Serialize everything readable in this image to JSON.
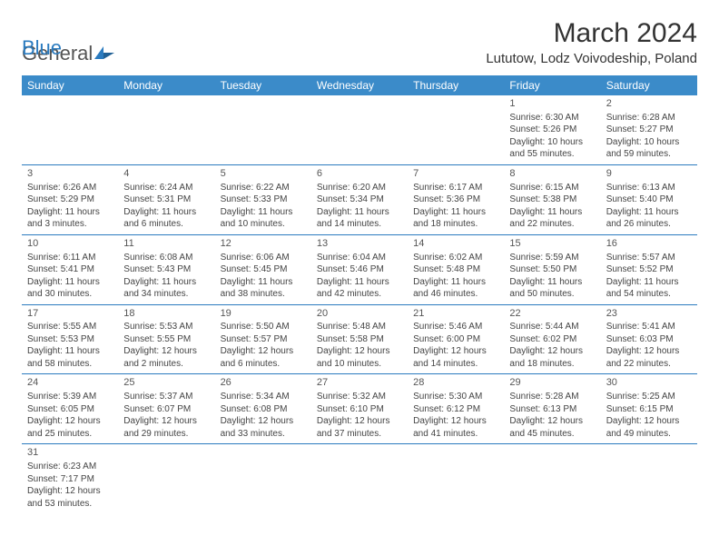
{
  "logo": {
    "text1": "General",
    "text2": "Blue"
  },
  "title": "March 2024",
  "location": "Lututow, Lodz Voivodeship, Poland",
  "colors": {
    "header_bg": "#3b8bc9",
    "header_text": "#ffffff",
    "border": "#2b7bbf",
    "body_text": "#444444",
    "title_text": "#333333"
  },
  "dayNames": [
    "Sunday",
    "Monday",
    "Tuesday",
    "Wednesday",
    "Thursday",
    "Friday",
    "Saturday"
  ],
  "leadingBlanks": 5,
  "days": [
    {
      "n": "1",
      "sr": "Sunrise: 6:30 AM",
      "ss": "Sunset: 5:26 PM",
      "d1": "Daylight: 10 hours",
      "d2": "and 55 minutes."
    },
    {
      "n": "2",
      "sr": "Sunrise: 6:28 AM",
      "ss": "Sunset: 5:27 PM",
      "d1": "Daylight: 10 hours",
      "d2": "and 59 minutes."
    },
    {
      "n": "3",
      "sr": "Sunrise: 6:26 AM",
      "ss": "Sunset: 5:29 PM",
      "d1": "Daylight: 11 hours",
      "d2": "and 3 minutes."
    },
    {
      "n": "4",
      "sr": "Sunrise: 6:24 AM",
      "ss": "Sunset: 5:31 PM",
      "d1": "Daylight: 11 hours",
      "d2": "and 6 minutes."
    },
    {
      "n": "5",
      "sr": "Sunrise: 6:22 AM",
      "ss": "Sunset: 5:33 PM",
      "d1": "Daylight: 11 hours",
      "d2": "and 10 minutes."
    },
    {
      "n": "6",
      "sr": "Sunrise: 6:20 AM",
      "ss": "Sunset: 5:34 PM",
      "d1": "Daylight: 11 hours",
      "d2": "and 14 minutes."
    },
    {
      "n": "7",
      "sr": "Sunrise: 6:17 AM",
      "ss": "Sunset: 5:36 PM",
      "d1": "Daylight: 11 hours",
      "d2": "and 18 minutes."
    },
    {
      "n": "8",
      "sr": "Sunrise: 6:15 AM",
      "ss": "Sunset: 5:38 PM",
      "d1": "Daylight: 11 hours",
      "d2": "and 22 minutes."
    },
    {
      "n": "9",
      "sr": "Sunrise: 6:13 AM",
      "ss": "Sunset: 5:40 PM",
      "d1": "Daylight: 11 hours",
      "d2": "and 26 minutes."
    },
    {
      "n": "10",
      "sr": "Sunrise: 6:11 AM",
      "ss": "Sunset: 5:41 PM",
      "d1": "Daylight: 11 hours",
      "d2": "and 30 minutes."
    },
    {
      "n": "11",
      "sr": "Sunrise: 6:08 AM",
      "ss": "Sunset: 5:43 PM",
      "d1": "Daylight: 11 hours",
      "d2": "and 34 minutes."
    },
    {
      "n": "12",
      "sr": "Sunrise: 6:06 AM",
      "ss": "Sunset: 5:45 PM",
      "d1": "Daylight: 11 hours",
      "d2": "and 38 minutes."
    },
    {
      "n": "13",
      "sr": "Sunrise: 6:04 AM",
      "ss": "Sunset: 5:46 PM",
      "d1": "Daylight: 11 hours",
      "d2": "and 42 minutes."
    },
    {
      "n": "14",
      "sr": "Sunrise: 6:02 AM",
      "ss": "Sunset: 5:48 PM",
      "d1": "Daylight: 11 hours",
      "d2": "and 46 minutes."
    },
    {
      "n": "15",
      "sr": "Sunrise: 5:59 AM",
      "ss": "Sunset: 5:50 PM",
      "d1": "Daylight: 11 hours",
      "d2": "and 50 minutes."
    },
    {
      "n": "16",
      "sr": "Sunrise: 5:57 AM",
      "ss": "Sunset: 5:52 PM",
      "d1": "Daylight: 11 hours",
      "d2": "and 54 minutes."
    },
    {
      "n": "17",
      "sr": "Sunrise: 5:55 AM",
      "ss": "Sunset: 5:53 PM",
      "d1": "Daylight: 11 hours",
      "d2": "and 58 minutes."
    },
    {
      "n": "18",
      "sr": "Sunrise: 5:53 AM",
      "ss": "Sunset: 5:55 PM",
      "d1": "Daylight: 12 hours",
      "d2": "and 2 minutes."
    },
    {
      "n": "19",
      "sr": "Sunrise: 5:50 AM",
      "ss": "Sunset: 5:57 PM",
      "d1": "Daylight: 12 hours",
      "d2": "and 6 minutes."
    },
    {
      "n": "20",
      "sr": "Sunrise: 5:48 AM",
      "ss": "Sunset: 5:58 PM",
      "d1": "Daylight: 12 hours",
      "d2": "and 10 minutes."
    },
    {
      "n": "21",
      "sr": "Sunrise: 5:46 AM",
      "ss": "Sunset: 6:00 PM",
      "d1": "Daylight: 12 hours",
      "d2": "and 14 minutes."
    },
    {
      "n": "22",
      "sr": "Sunrise: 5:44 AM",
      "ss": "Sunset: 6:02 PM",
      "d1": "Daylight: 12 hours",
      "d2": "and 18 minutes."
    },
    {
      "n": "23",
      "sr": "Sunrise: 5:41 AM",
      "ss": "Sunset: 6:03 PM",
      "d1": "Daylight: 12 hours",
      "d2": "and 22 minutes."
    },
    {
      "n": "24",
      "sr": "Sunrise: 5:39 AM",
      "ss": "Sunset: 6:05 PM",
      "d1": "Daylight: 12 hours",
      "d2": "and 25 minutes."
    },
    {
      "n": "25",
      "sr": "Sunrise: 5:37 AM",
      "ss": "Sunset: 6:07 PM",
      "d1": "Daylight: 12 hours",
      "d2": "and 29 minutes."
    },
    {
      "n": "26",
      "sr": "Sunrise: 5:34 AM",
      "ss": "Sunset: 6:08 PM",
      "d1": "Daylight: 12 hours",
      "d2": "and 33 minutes."
    },
    {
      "n": "27",
      "sr": "Sunrise: 5:32 AM",
      "ss": "Sunset: 6:10 PM",
      "d1": "Daylight: 12 hours",
      "d2": "and 37 minutes."
    },
    {
      "n": "28",
      "sr": "Sunrise: 5:30 AM",
      "ss": "Sunset: 6:12 PM",
      "d1": "Daylight: 12 hours",
      "d2": "and 41 minutes."
    },
    {
      "n": "29",
      "sr": "Sunrise: 5:28 AM",
      "ss": "Sunset: 6:13 PM",
      "d1": "Daylight: 12 hours",
      "d2": "and 45 minutes."
    },
    {
      "n": "30",
      "sr": "Sunrise: 5:25 AM",
      "ss": "Sunset: 6:15 PM",
      "d1": "Daylight: 12 hours",
      "d2": "and 49 minutes."
    },
    {
      "n": "31",
      "sr": "Sunrise: 6:23 AM",
      "ss": "Sunset: 7:17 PM",
      "d1": "Daylight: 12 hours",
      "d2": "and 53 minutes."
    }
  ]
}
